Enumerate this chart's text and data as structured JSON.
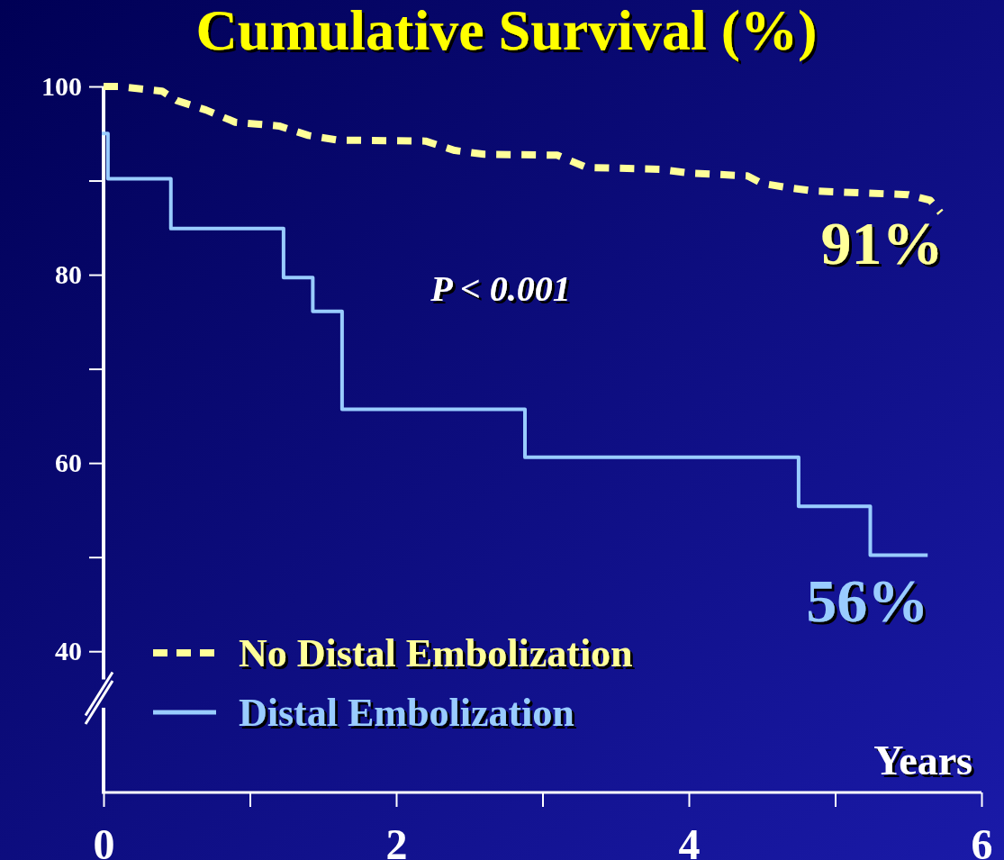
{
  "chart_data": {
    "type": "line",
    "title": "Cumulative Survival (%)",
    "xlabel": "Years",
    "xlim": [
      0,
      6
    ],
    "xticks": [
      0,
      {
        "value": 1,
        "label": null
      },
      2,
      {
        "value": 3,
        "label": null
      },
      4,
      {
        "value": 5,
        "label": null
      },
      6
    ],
    "ylim": [
      25,
      100
    ],
    "yticks": [
      40,
      {
        "value": 50,
        "label": null
      },
      60,
      {
        "value": 70,
        "label": null
      },
      80,
      {
        "value": 90,
        "label": null
      },
      100
    ],
    "grid": false,
    "legend": "bottom left",
    "marker": "none",
    "series": [
      {
        "name": "No Distal Embolization",
        "line_style": "dashed",
        "color": "#ffff99",
        "x": [
          0,
          0.1,
          0.4,
          0.5,
          0.7,
          0.9,
          1.2,
          1.4,
          1.6,
          2.2,
          2.4,
          2.6,
          3.1,
          3.3,
          3.8,
          4.0,
          4.4,
          4.5,
          4.7,
          4.85,
          5.5,
          5.65,
          5.72
        ],
        "values": [
          100,
          100,
          99.5,
          98.5,
          97.5,
          96.2,
          95.8,
          94.8,
          94.3,
          94.2,
          93.2,
          92.8,
          92.7,
          91.4,
          91.2,
          90.8,
          90.5,
          89.7,
          89.2,
          88.9,
          88.5,
          87.9,
          86.6
        ]
      },
      {
        "name": "Distal Embolization",
        "type": "step",
        "line_style": "solid",
        "color": "#99ccff",
        "x": [
          0,
          0.03,
          0.46,
          1.23,
          1.43,
          1.63,
          2.88,
          4.75,
          5.24,
          5.62
        ],
        "values": [
          95,
          90.2,
          84.9,
          79.7,
          76.1,
          65.7,
          60.6,
          55.4,
          50.2,
          50.2
        ]
      }
    ],
    "annotations": [
      {
        "text": "91%",
        "x": 5.72,
        "y": 86.7
      },
      {
        "text": "56%",
        "x": 5.62,
        "y": 50.2
      },
      "P < 0.001"
    ]
  }
}
